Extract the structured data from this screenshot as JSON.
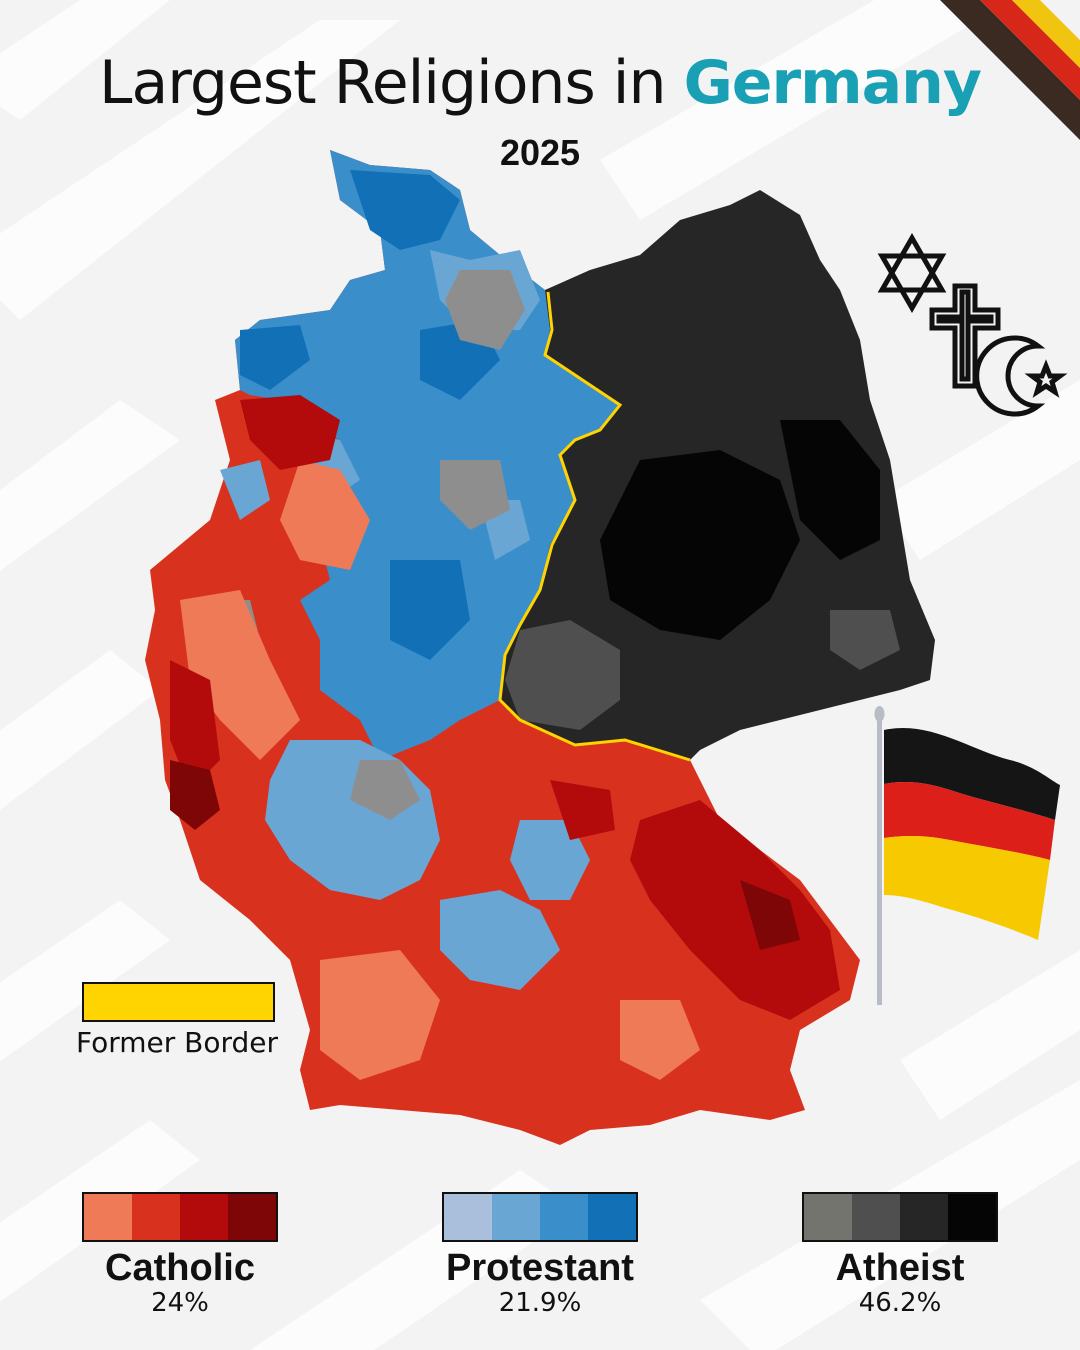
{
  "title": {
    "prefix": "Largest Religions in ",
    "highlight": "Germany",
    "highlight_color": "#1aa0b5"
  },
  "subtitle": "2025",
  "former_border": {
    "label": "Former Border",
    "color": "#ffd400"
  },
  "legend": [
    {
      "name": "Catholic",
      "percent": "24%",
      "colors": [
        "#ee7a58",
        "#d8321f",
        "#b30b0b",
        "#7f0606"
      ]
    },
    {
      "name": "Protestant",
      "percent": "21.9%",
      "colors": [
        "#a9bfdc",
        "#6aa6d4",
        "#3a8fcb",
        "#1170b6"
      ]
    },
    {
      "name": "Atheist",
      "percent": "46.2%",
      "colors": [
        "#74746f",
        "#4f4f4f",
        "#262626",
        "#050505"
      ]
    }
  ],
  "icons": [
    "star-of-david-icon",
    "christian-cross-icon",
    "crescent-star-icon",
    "german-flag-icon"
  ]
}
